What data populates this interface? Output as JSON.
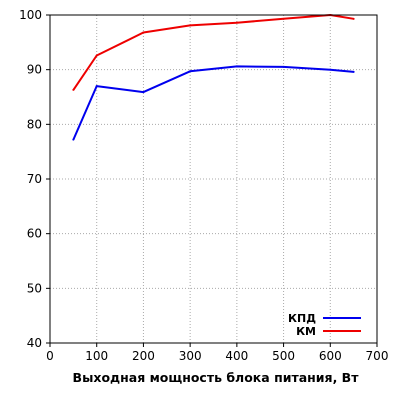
{
  "chart_data": {
    "type": "line",
    "title": "",
    "xlabel": "Выходная мощность блока питания, Вт",
    "ylabel": "",
    "xlim": [
      0,
      700
    ],
    "ylim": [
      40,
      100
    ],
    "x_ticks": [
      0,
      100,
      200,
      300,
      400,
      500,
      600,
      700
    ],
    "y_ticks": [
      40,
      50,
      60,
      70,
      80,
      90,
      100
    ],
    "grid": true,
    "legend_position": "bottom-right",
    "series": [
      {
        "name": "КПД",
        "color": "#0000ee",
        "x": [
          50,
          100,
          200,
          300,
          400,
          500,
          600,
          650
        ],
        "values": [
          77.2,
          87.0,
          85.9,
          89.7,
          90.6,
          90.5,
          90.0,
          89.6
        ]
      },
      {
        "name": "КМ",
        "color": "#ee0000",
        "x": [
          50,
          100,
          200,
          300,
          400,
          500,
          600,
          650
        ],
        "values": [
          86.3,
          92.6,
          96.8,
          98.1,
          98.6,
          99.3,
          100.0,
          99.3
        ]
      }
    ]
  }
}
